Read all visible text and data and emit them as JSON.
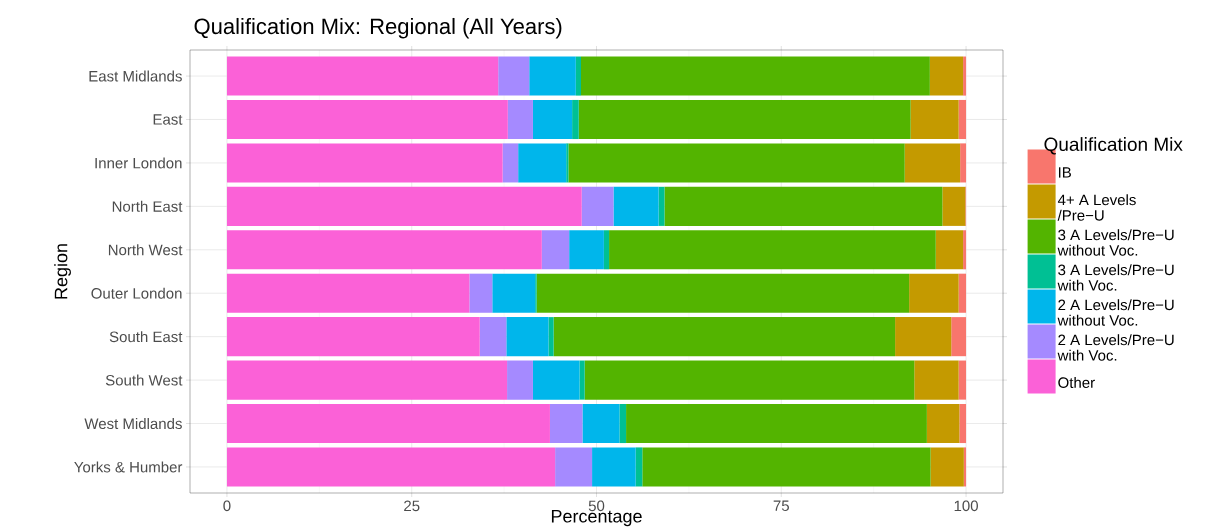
{
  "chart_data": {
    "type": "bar",
    "orientation": "horizontal",
    "stacked": true,
    "title": "Qualification Mix: Regional (All Years)",
    "xlabel": "Percentage",
    "ylabel": "Region",
    "legend_title": "Qualification Mix",
    "categories": [
      "East Midlands",
      "East",
      "Inner London",
      "North East",
      "North West",
      "Outer London",
      "South East",
      "South West",
      "West Midlands",
      "Yorks & Humber"
    ],
    "series": [
      {
        "name": "Other",
        "color": "#fb61d7",
        "values": [
          36.7,
          38.0,
          37.3,
          48.0,
          42.6,
          32.8,
          34.2,
          37.9,
          43.7,
          44.4
        ]
      },
      {
        "name": "2 A Levels/Pre−U with Voc.",
        "color": "#a58aff",
        "values": [
          4.2,
          3.4,
          2.1,
          4.3,
          3.7,
          3.1,
          3.6,
          3.5,
          4.4,
          5.0
        ]
      },
      {
        "name": "2 A Levels/Pre−U without Voc.",
        "color": "#00b6eb",
        "values": [
          6.3,
          5.3,
          6.5,
          6.1,
          4.7,
          5.8,
          5.7,
          6.3,
          5.0,
          5.9
        ]
      },
      {
        "name": "3 A Levels/Pre−U with Voc.",
        "color": "#00c094",
        "values": [
          0.7,
          0.9,
          0.3,
          0.8,
          0.7,
          0.2,
          0.7,
          0.7,
          0.9,
          0.9
        ]
      },
      {
        "name": "3 A Levels/Pre−U without Voc.",
        "color": "#53b400",
        "values": [
          47.2,
          44.9,
          45.5,
          37.6,
          44.2,
          50.4,
          46.2,
          44.6,
          40.7,
          39.0
        ]
      },
      {
        "name": "4+ A Levels /Pre−U",
        "color": "#c49a00",
        "values": [
          4.5,
          6.5,
          7.5,
          3.1,
          3.7,
          6.7,
          7.6,
          6.0,
          4.4,
          4.5
        ]
      },
      {
        "name": "IB",
        "color": "#f8766d",
        "values": [
          0.4,
          1.0,
          0.8,
          0.1,
          0.4,
          1.0,
          2.0,
          1.0,
          0.9,
          0.3
        ]
      }
    ],
    "xlim": [
      -5,
      105
    ],
    "xticks": [
      0,
      25,
      50,
      75,
      100
    ],
    "grid": true,
    "legend": "right"
  }
}
